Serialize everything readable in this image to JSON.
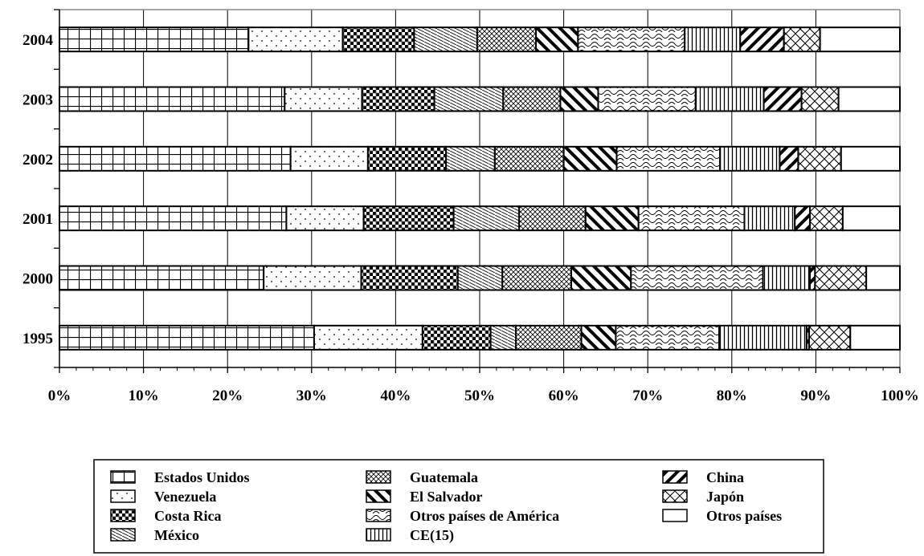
{
  "chart_data": {
    "type": "bar",
    "orientation": "horizontal",
    "stacked": "percent",
    "categories": [
      "2004",
      "2003",
      "2002",
      "2001",
      "2000",
      "1995"
    ],
    "xlim": [
      0,
      100
    ],
    "x_ticks": [
      "0%",
      "10%",
      "20%",
      "30%",
      "40%",
      "50%",
      "60%",
      "70%",
      "80%",
      "90%",
      "100%"
    ],
    "grid": true,
    "legend_position": "bottom",
    "series": [
      {
        "name": "Estados Unidos",
        "pattern": "grid",
        "values": [
          22.5,
          26.8,
          27.5,
          27.0,
          24.3,
          30.3
        ]
      },
      {
        "name": "Venezuela",
        "pattern": "dots",
        "values": [
          11.2,
          9.2,
          9.2,
          9.2,
          11.6,
          12.9
        ]
      },
      {
        "name": "Costa Rica",
        "pattern": "checker",
        "values": [
          8.5,
          8.6,
          9.3,
          10.7,
          11.5,
          8.1
        ]
      },
      {
        "name": "México",
        "pattern": "fine-diagonal",
        "values": [
          7.5,
          8.2,
          5.8,
          7.8,
          5.3,
          3.0
        ]
      },
      {
        "name": "Guatemala",
        "pattern": "crosshatch-fine",
        "values": [
          7.0,
          6.8,
          8.2,
          7.9,
          8.2,
          7.8
        ]
      },
      {
        "name": "El Salvador",
        "pattern": "back-diagonal-thick",
        "values": [
          5.0,
          4.5,
          6.3,
          6.3,
          7.1,
          4.1
        ]
      },
      {
        "name": "Otros países de América",
        "pattern": "waves",
        "values": [
          12.7,
          11.6,
          12.3,
          12.6,
          15.7,
          12.3
        ]
      },
      {
        "name": "CE(15)",
        "pattern": "vertical",
        "values": [
          6.6,
          8.1,
          7.1,
          6.0,
          5.6,
          10.4
        ]
      },
      {
        "name": "China",
        "pattern": "diagonal-thick",
        "values": [
          5.2,
          4.5,
          2.2,
          1.8,
          0.6,
          0.3
        ]
      },
      {
        "name": "Japón",
        "pattern": "diamond",
        "values": [
          4.3,
          4.4,
          5.1,
          3.9,
          6.1,
          4.9
        ]
      },
      {
        "name": "Otros países",
        "pattern": "blank",
        "values": [
          9.5,
          7.3,
          7.0,
          6.8,
          4.0,
          5.9
        ]
      }
    ]
  }
}
